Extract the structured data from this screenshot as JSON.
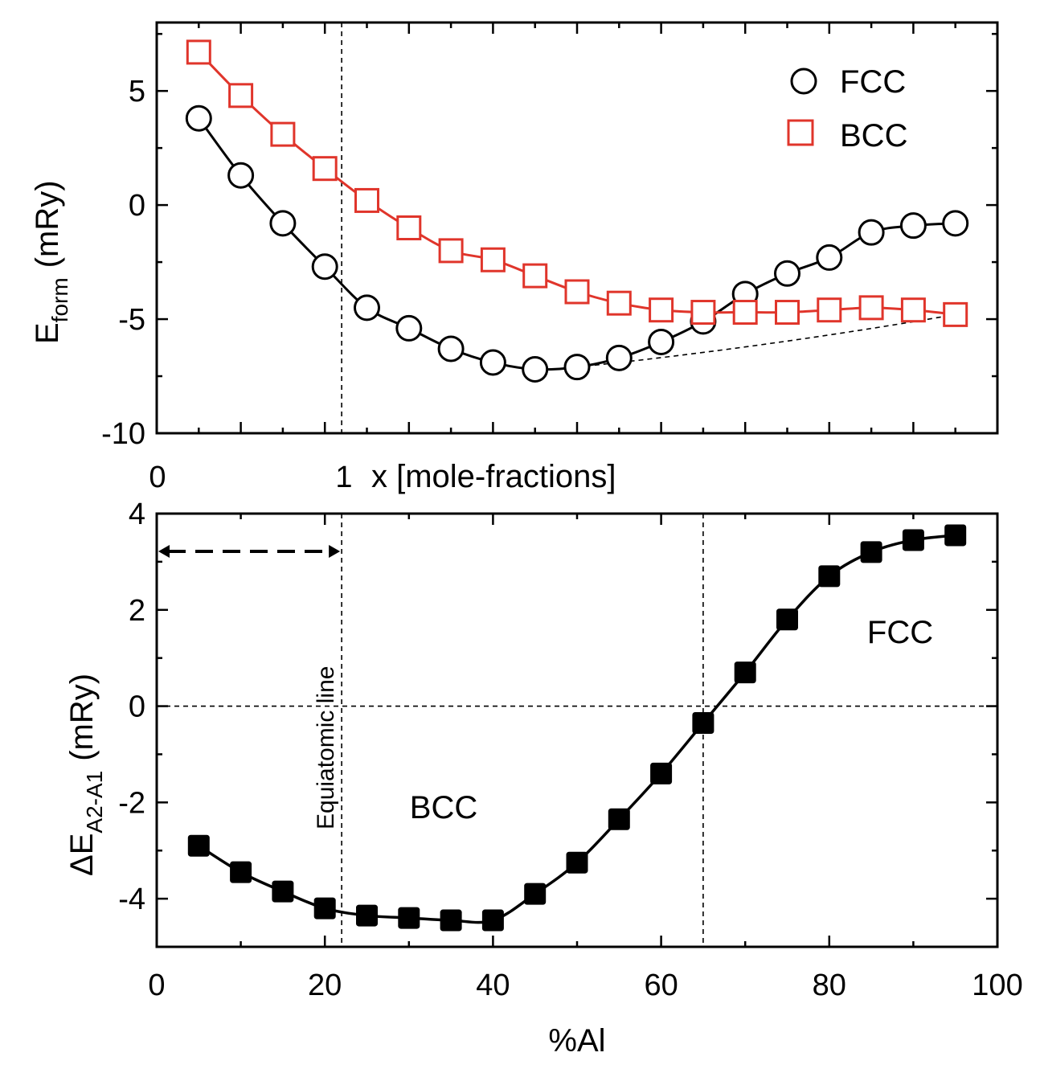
{
  "chart_data": [
    {
      "type": "line",
      "panel": "top",
      "title": "",
      "xlabel": "x [mole-fractions]",
      "ylabel_main": "E",
      "ylabel_sub": "form",
      "ylabel_unit": "(mRy)",
      "xlim": [
        0,
        1
      ],
      "ylim": [
        -10,
        8
      ],
      "x_tick_labels": [
        "0",
        "1"
      ],
      "y_ticks": [
        -10,
        -5,
        0,
        5
      ],
      "y_tick_labels": [
        "-10",
        "-5",
        "0",
        "5"
      ],
      "equiatomic_x": 0.22,
      "legend_position": "top-right",
      "series": [
        {
          "name": "FCC",
          "color": "#000000",
          "marker": "circle",
          "x": [
            0.05,
            0.1,
            0.15,
            0.2,
            0.25,
            0.3,
            0.35,
            0.4,
            0.45,
            0.5,
            0.55,
            0.6,
            0.65,
            0.7,
            0.75,
            0.8,
            0.85,
            0.9,
            0.95
          ],
          "values": [
            3.8,
            1.3,
            -0.8,
            -2.7,
            -4.5,
            -5.4,
            -6.3,
            -6.9,
            -7.2,
            -7.1,
            -6.7,
            -6.0,
            -5.1,
            -3.9,
            -3.0,
            -2.3,
            -1.2,
            -0.9,
            -0.8
          ]
        },
        {
          "name": "BCC",
          "color": "#e0352b",
          "marker": "square",
          "x": [
            0.05,
            0.1,
            0.15,
            0.2,
            0.25,
            0.3,
            0.35,
            0.4,
            0.45,
            0.5,
            0.55,
            0.6,
            0.65,
            0.7,
            0.75,
            0.8,
            0.85,
            0.9,
            0.95
          ],
          "values": [
            6.7,
            4.8,
            3.1,
            1.6,
            0.2,
            -1.0,
            -2.0,
            -2.4,
            -3.1,
            -3.8,
            -4.3,
            -4.6,
            -4.7,
            -4.7,
            -4.7,
            -4.6,
            -4.5,
            -4.6,
            -4.8
          ]
        }
      ],
      "hull_line": {
        "x": [
          0.5,
          0.95
        ],
        "values": [
          -7.1,
          -4.8
        ]
      }
    },
    {
      "type": "line",
      "panel": "bottom",
      "title": "",
      "xlabel": "%Al",
      "ylabel_main": "ΔE",
      "ylabel_sub": "A2-A1",
      "ylabel_unit": "(mRy)",
      "xlim": [
        0,
        100
      ],
      "ylim": [
        -5,
        4
      ],
      "x_ticks": [
        0,
        20,
        40,
        60,
        80,
        100
      ],
      "x_tick_labels": [
        "0",
        "20",
        "40",
        "60",
        "80",
        "100"
      ],
      "y_ticks": [
        -4,
        -2,
        0,
        2,
        4
      ],
      "y_tick_labels": [
        "-4",
        "-2",
        "0",
        "2",
        "4"
      ],
      "equiatomic_x": 22,
      "crossover_x": 65,
      "series": [
        {
          "name": "ΔE A2-A1",
          "color": "#000000",
          "marker": "filled-square",
          "x": [
            5,
            10,
            15,
            20,
            25,
            30,
            35,
            40,
            45,
            50,
            55,
            60,
            65,
            70,
            75,
            80,
            85,
            90,
            95
          ],
          "values": [
            -2.9,
            -3.45,
            -3.85,
            -4.2,
            -4.35,
            -4.4,
            -4.45,
            -4.45,
            -3.9,
            -3.25,
            -2.35,
            -1.4,
            -0.35,
            0.7,
            1.8,
            2.7,
            3.2,
            3.45,
            3.55
          ]
        }
      ],
      "annotations": {
        "equiatomic_label": "Equiatomic line",
        "bcc_label": "BCC",
        "fcc_label": "FCC"
      }
    }
  ]
}
